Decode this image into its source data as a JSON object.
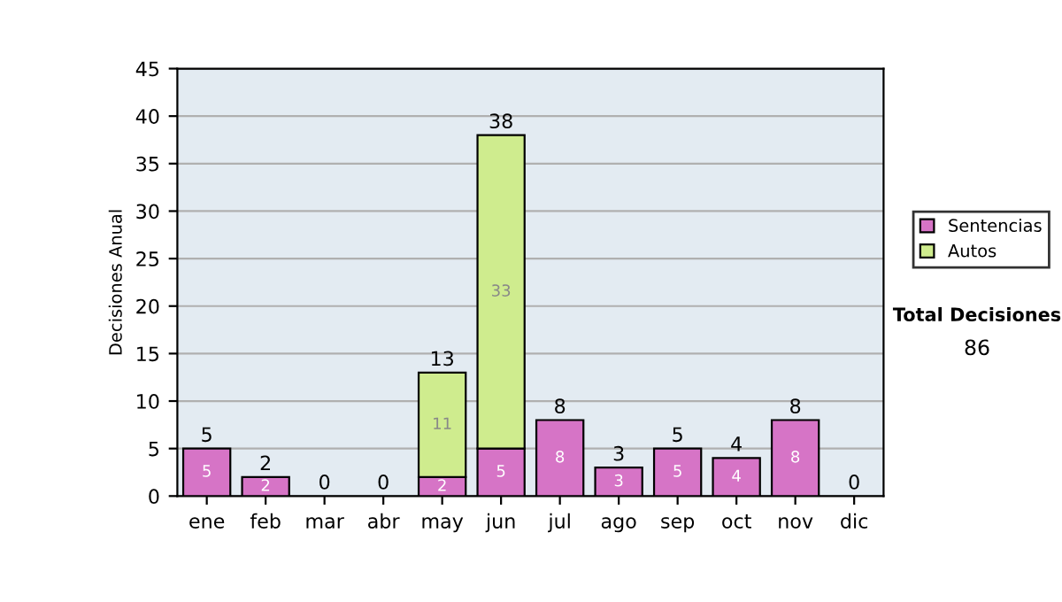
{
  "chart_data": {
    "type": "bar",
    "stacked": true,
    "ylabel": "Decisiones Anual",
    "categories": [
      "ene",
      "feb",
      "mar",
      "abr",
      "may",
      "jun",
      "jul",
      "ago",
      "sep",
      "oct",
      "nov",
      "dic"
    ],
    "series": [
      {
        "name": "Sentencias",
        "color": "#d674c6",
        "values": [
          5,
          2,
          0,
          0,
          2,
          5,
          8,
          3,
          5,
          4,
          8,
          0
        ],
        "value_labels": [
          "5",
          "2",
          null,
          null,
          "2",
          "5",
          "8",
          "3",
          "5",
          "4",
          "8",
          null
        ]
      },
      {
        "name": "Autos",
        "color": "#cfec8e",
        "values": [
          0,
          0,
          0,
          0,
          11,
          33,
          0,
          0,
          0,
          0,
          0,
          0
        ],
        "value_labels": [
          null,
          null,
          null,
          null,
          "11",
          "33",
          null,
          null,
          null,
          null,
          null,
          null
        ]
      }
    ],
    "totals": [
      "5",
      "2",
      "0",
      "0",
      "13",
      "38",
      "8",
      "3",
      "5",
      "4",
      "8",
      "0"
    ],
    "ylim": [
      0,
      45
    ],
    "yticks": [
      0,
      5,
      10,
      15,
      20,
      25,
      30,
      35,
      40,
      45
    ],
    "grid": "y",
    "legend": "right",
    "annotations": [
      "Total Decisiones",
      "86"
    ]
  }
}
